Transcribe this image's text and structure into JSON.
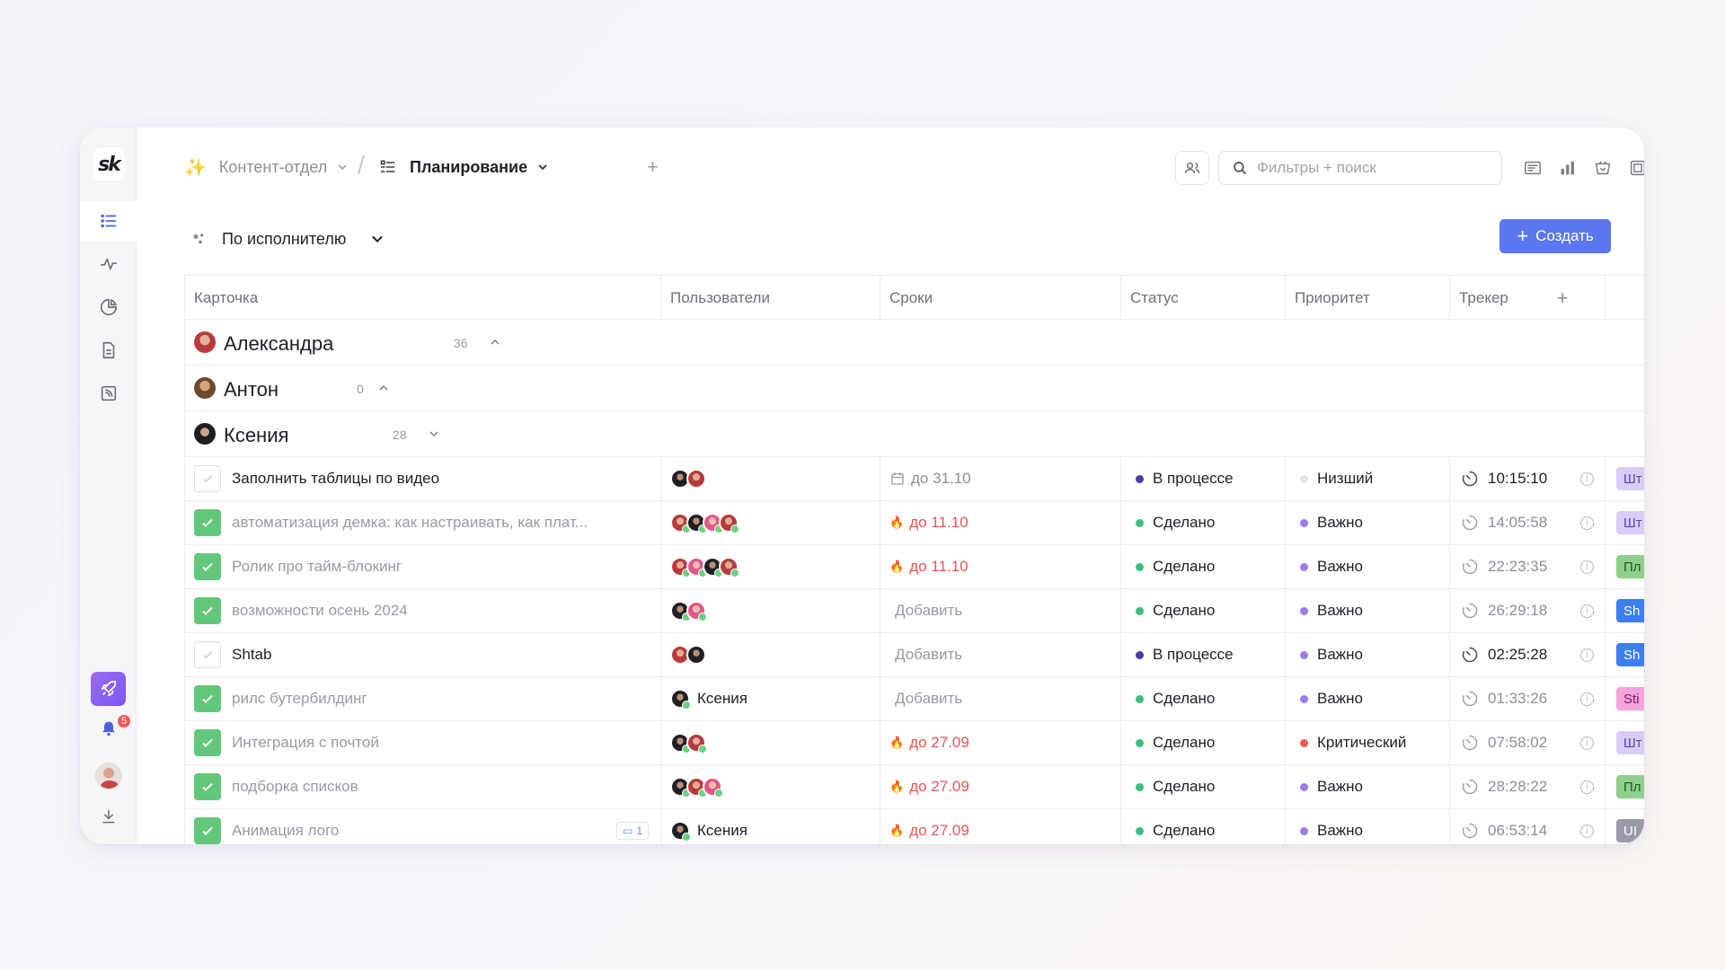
{
  "sidebar": {
    "logo": "sk",
    "notifications_count": "5"
  },
  "header": {
    "workspace": "Контент-отдел",
    "board": "Планирование",
    "search_placeholder": "Фильтры + поиск"
  },
  "toolbar": {
    "group_by": "По исполнителю",
    "create_label": "Создать"
  },
  "columns": [
    "Карточка",
    "Пользователи",
    "Сроки",
    "Статус",
    "Приоритет",
    "Трекер"
  ],
  "groups": [
    {
      "name": "Александра",
      "count": "36"
    },
    {
      "name": "Антон",
      "count": "0"
    },
    {
      "name": "Ксения",
      "count": "28"
    }
  ],
  "rows": [
    {
      "title": "Заполнить таблицы по видео",
      "done": false,
      "users": [
        "dark",
        "red"
      ],
      "user_name": "",
      "date": "до 31.10",
      "date_kind": "muted",
      "status": "В процессе",
      "status_color": "#4b3aa8",
      "priority": "Низший",
      "priority_color": "#e3e3e8",
      "time": "10:15:10",
      "time_active": true,
      "tag": "Шт",
      "tag_bg": "#d9cdf8",
      "tag_fg": "#5a3fb8",
      "comments": ""
    },
    {
      "title": "автоматизация демка: как настраивать, как плат...",
      "done": true,
      "users": [
        "red",
        "dark",
        "pink",
        "red"
      ],
      "user_name": "",
      "date": "до 11.10",
      "date_kind": "red",
      "status": "Сделано",
      "status_color": "#3bbf7d",
      "priority": "Важно",
      "priority_color": "#9b7bf0",
      "time": "14:05:58",
      "time_active": false,
      "tag": "Шт",
      "tag_bg": "#d9cdf8",
      "tag_fg": "#5a3fb8",
      "comments": ""
    },
    {
      "title": "Ролик про тайм-блокинг",
      "done": true,
      "users": [
        "red",
        "pink",
        "dark",
        "red"
      ],
      "user_name": "",
      "date": "до 11.10",
      "date_kind": "red",
      "status": "Сделано",
      "status_color": "#3bbf7d",
      "priority": "Важно",
      "priority_color": "#9b7bf0",
      "time": "22:23:35",
      "time_active": false,
      "tag": "Пл",
      "tag_bg": "#8fd08d",
      "tag_fg": "#1d5a1f",
      "comments": ""
    },
    {
      "title": "возможности осень 2024",
      "done": true,
      "users": [
        "dark",
        "pink"
      ],
      "user_name": "",
      "date": "Добавить",
      "date_kind": "add",
      "status": "Сделано",
      "status_color": "#3bbf7d",
      "priority": "Важно",
      "priority_color": "#9b7bf0",
      "time": "26:29:18",
      "time_active": false,
      "tag": "Sh",
      "tag_bg": "#3d7ef0",
      "tag_fg": "#ffffff",
      "comments": ""
    },
    {
      "title": "Shtab",
      "done": false,
      "users": [
        "red",
        "dark"
      ],
      "user_name": "",
      "date": "Добавить",
      "date_kind": "add",
      "status": "В процессе",
      "status_color": "#4b3aa8",
      "priority": "Важно",
      "priority_color": "#9b7bf0",
      "time": "02:25:28",
      "time_active": true,
      "tag": "Sh",
      "tag_bg": "#3d7ef0",
      "tag_fg": "#ffffff",
      "comments": ""
    },
    {
      "title": "рилс бутербилдинг",
      "done": true,
      "users": [
        "dark"
      ],
      "user_name": "Ксения",
      "date": "Добавить",
      "date_kind": "add",
      "status": "Сделано",
      "status_color": "#3bbf7d",
      "priority": "Важно",
      "priority_color": "#9b7bf0",
      "time": "01:33:26",
      "time_active": false,
      "tag": "Sti",
      "tag_bg": "#f4a3dc",
      "tag_fg": "#7a1d62",
      "comments": ""
    },
    {
      "title": "Интеграция с почтой",
      "done": true,
      "users": [
        "dark",
        "red"
      ],
      "user_name": "",
      "date": "до 27.09",
      "date_kind": "red",
      "status": "Сделано",
      "status_color": "#3bbf7d",
      "priority": "Критический",
      "priority_color": "#ee5a5a",
      "time": "07:58:02",
      "time_active": false,
      "tag": "Шт",
      "tag_bg": "#d9cdf8",
      "tag_fg": "#5a3fb8",
      "comments": ""
    },
    {
      "title": "подборка списков",
      "done": true,
      "users": [
        "dark",
        "red",
        "pink"
      ],
      "user_name": "",
      "date": "до 27.09",
      "date_kind": "red",
      "status": "Сделано",
      "status_color": "#3bbf7d",
      "priority": "Важно",
      "priority_color": "#9b7bf0",
      "time": "28:28:22",
      "time_active": false,
      "tag": "Пл",
      "tag_bg": "#8fd08d",
      "tag_fg": "#1d5a1f",
      "comments": ""
    },
    {
      "title": "Анимация лого",
      "done": true,
      "users": [
        "dark"
      ],
      "user_name": "Ксения",
      "date": "до 27.09",
      "date_kind": "red",
      "status": "Сделано",
      "status_color": "#3bbf7d",
      "priority": "Важно",
      "priority_color": "#9b7bf0",
      "time": "06:53:14",
      "time_active": false,
      "tag": "UI",
      "tag_bg": "#9a9aa6",
      "tag_fg": "#ffffff",
      "comments": "1"
    }
  ]
}
